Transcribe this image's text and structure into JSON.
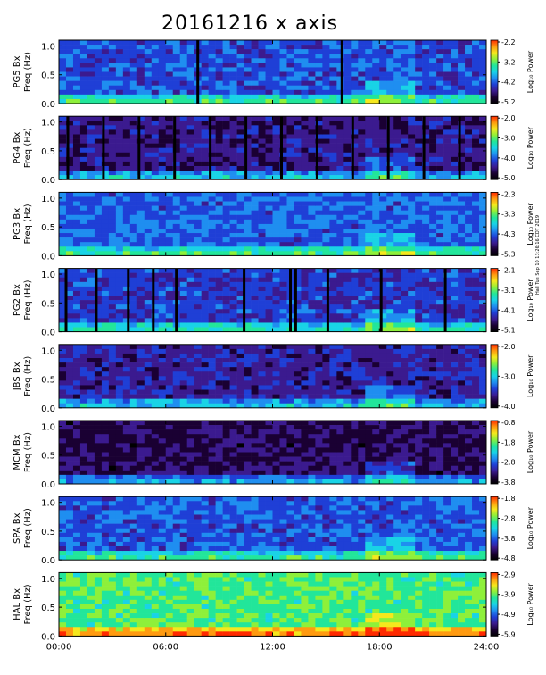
{
  "chart_data": {
    "type": "heatmap",
    "title": "20161216 x axis",
    "stamp": "Hall Tue Sep 10 13:26:16 CDT 2019",
    "x_ticks": [
      "00:00",
      "06:00",
      "12:00",
      "18:00",
      "24:00"
    ],
    "x_range_hours": [
      0,
      24
    ],
    "y_ticks": [
      "0.0",
      "0.5",
      "1.0"
    ],
    "y_range_hz": [
      0,
      1.1
    ],
    "colorbar_label": "Log₁₀ Power",
    "colormap": [
      "#000000",
      "#1a0033",
      "#3b1a8f",
      "#1f3fd6",
      "#1f8ef0",
      "#19d3e6",
      "#22e69a",
      "#8ef03a",
      "#f5e81d",
      "#ff9a10",
      "#ff2a00"
    ],
    "panels": [
      {
        "label": "PG5 Bx",
        "freq_label": "Freq (Hz)",
        "cbar_ticks": [
          "-2.2",
          "-3.2",
          "-4.2",
          "-5.2"
        ],
        "base": 0.33,
        "dropouts_hours": [
          7.8,
          15.9
        ]
      },
      {
        "label": "PG4 Bx",
        "freq_label": "Freq (Hz)",
        "cbar_ticks": [
          "-2.0",
          "-3.0",
          "-4.0",
          "-5.0"
        ],
        "base": 0.22,
        "dropouts_hours": [
          0.5,
          2.5,
          4.5,
          6.5,
          8.5,
          10.5,
          12.5,
          14.5,
          16.5,
          18.5,
          20.5,
          22.5
        ]
      },
      {
        "label": "PG3 Bx",
        "freq_label": "Freq (Hz)",
        "cbar_ticks": [
          "-2.3",
          "-3.3",
          "-4.3",
          "-5.3"
        ],
        "base": 0.35,
        "dropouts_hours": []
      },
      {
        "label": "PG2 Bx",
        "freq_label": "Freq (Hz)",
        "cbar_ticks": [
          "-2.1",
          "-3.1",
          "-4.1",
          "-5.1"
        ],
        "base": 0.3,
        "dropouts_hours": [
          0.4,
          2.1,
          3.9,
          5.3,
          6.6,
          10.4,
          13.0,
          13.3,
          15.1,
          18.1,
          21.7
        ]
      },
      {
        "label": "JBS Bx",
        "freq_label": "Freq (Hz)",
        "cbar_ticks": [
          "-2.0",
          "-3.0",
          "-4.0"
        ],
        "base": 0.24,
        "dropouts_hours": []
      },
      {
        "label": "MCM Bx",
        "freq_label": "Freq (Hz)",
        "cbar_ticks": [
          "-0.8",
          "-1.8",
          "-2.8",
          "-3.8"
        ],
        "base": 0.17,
        "dropouts_hours": []
      },
      {
        "label": "SPA Bx",
        "freq_label": "Freq (Hz)",
        "cbar_ticks": [
          "-1.8",
          "-2.8",
          "-3.8",
          "-4.8"
        ],
        "base": 0.34,
        "dropouts_hours": []
      },
      {
        "label": "HAL Bx",
        "freq_label": "Freq (Hz)",
        "cbar_ticks": [
          "-2.9",
          "-3.9",
          "-4.9",
          "-5.9"
        ],
        "base": 0.62,
        "dropouts_hours": []
      }
    ]
  }
}
